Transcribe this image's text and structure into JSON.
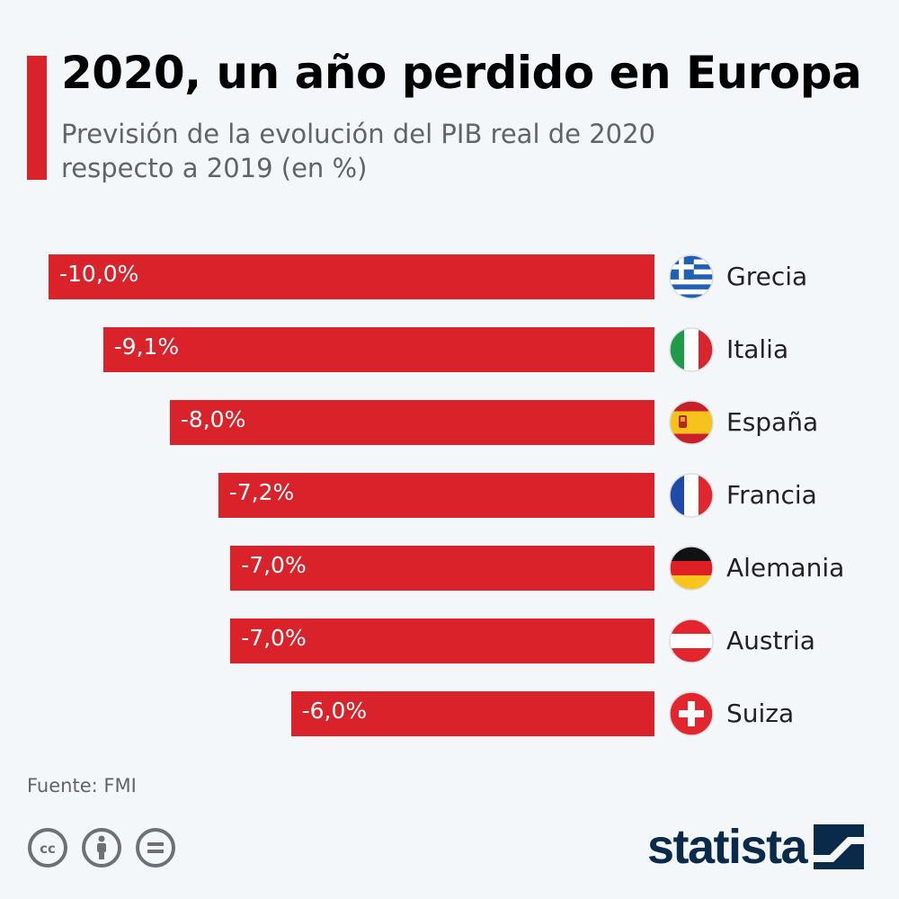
{
  "header": {
    "title": "2020, un año perdido en Europa",
    "subtitle": "Previsión de la evolución del PIB real de 2020 respecto a 2019 (en %)"
  },
  "chart_data": {
    "type": "bar",
    "orientation": "horizontal",
    "categories": [
      "Grecia",
      "Italia",
      "España",
      "Francia",
      "Alemania",
      "Austria",
      "Suiza"
    ],
    "values": [
      -10.0,
      -9.1,
      -8.0,
      -7.2,
      -7.0,
      -7.0,
      -6.0
    ],
    "value_labels": [
      "-10,0%",
      "-9,1%",
      "-8,0%",
      "-7,2%",
      "-7,0%",
      "-7,0%",
      "-6,0%"
    ],
    "title": "2020, un año perdido en Europa",
    "xlabel": "",
    "ylabel": "",
    "xlim": [
      -10,
      0
    ],
    "unit": "%",
    "bar_color": "#d9222a",
    "flags": [
      "greece-flag-icon",
      "italy-flag-icon",
      "spain-flag-icon",
      "france-flag-icon",
      "germany-flag-icon",
      "austria-flag-icon",
      "switzerland-flag-icon"
    ]
  },
  "footer": {
    "source": "Fuente: FMI",
    "brand": "statista",
    "license_icons": [
      "cc-icon",
      "attribution-icon",
      "no-derivatives-icon"
    ]
  },
  "colors": {
    "accent": "#d9222a",
    "background": "#f4f7fa",
    "brand": "#0a2a4a"
  }
}
